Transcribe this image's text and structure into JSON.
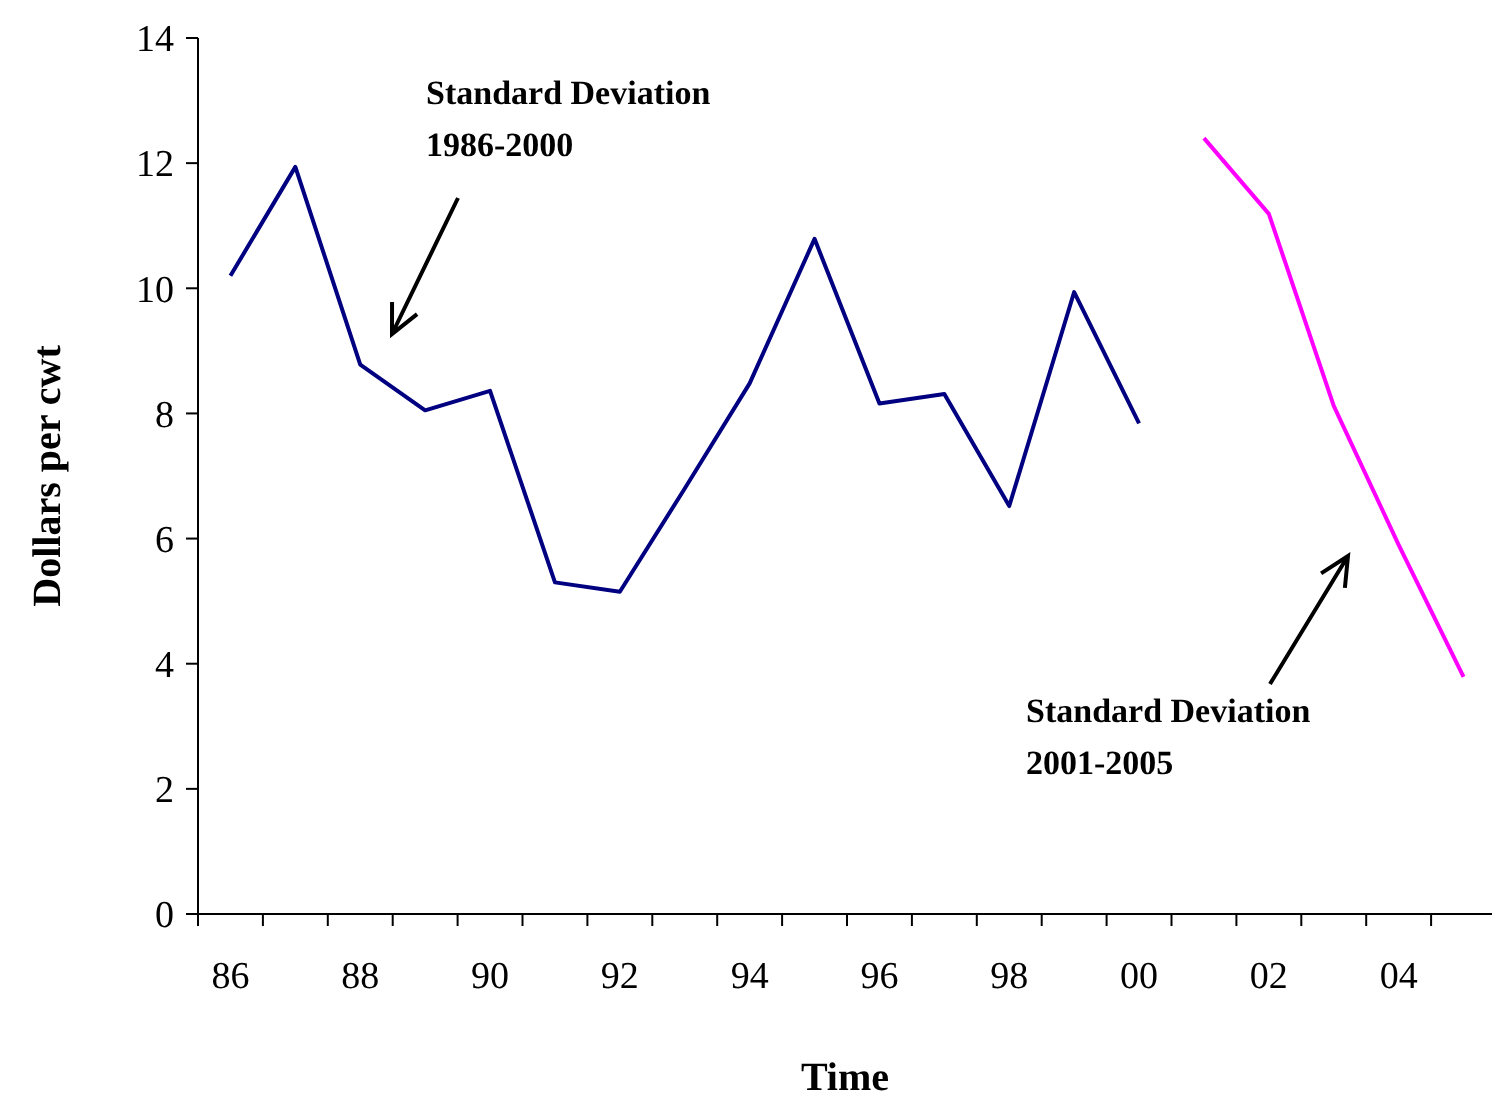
{
  "chart_data": {
    "type": "line",
    "xlabel": "Time",
    "ylabel": "Dollars per cwt",
    "categories": [
      "86",
      null,
      "88",
      null,
      "90",
      null,
      "92",
      null,
      "94",
      null,
      "96",
      null,
      "98",
      null,
      "00",
      null,
      "02",
      null,
      "04",
      null
    ],
    "series": [
      {
        "color": "#000080",
        "values": [
          10.2,
          11.94,
          8.78,
          8.05,
          8.36,
          5.3,
          5.15,
          6.8,
          8.48,
          10.79,
          8.16,
          8.31,
          6.52,
          9.94,
          7.84,
          null,
          null,
          null,
          null,
          null
        ]
      },
      {
        "color": "#ff00ff",
        "values": [
          null,
          null,
          null,
          null,
          null,
          null,
          null,
          null,
          null,
          null,
          null,
          null,
          null,
          null,
          null,
          12.4,
          11.19,
          8.12,
          5.9,
          3.79
        ]
      }
    ],
    "ylim": [
      0,
      14
    ],
    "yticks": [
      0,
      2,
      4,
      6,
      8,
      10,
      12,
      14
    ],
    "grid": false,
    "marker": "none",
    "line_style": "solid",
    "annotations": [
      "Standard Deviation\n1986-2000",
      "Standard Deviation\n2001-2005"
    ]
  }
}
